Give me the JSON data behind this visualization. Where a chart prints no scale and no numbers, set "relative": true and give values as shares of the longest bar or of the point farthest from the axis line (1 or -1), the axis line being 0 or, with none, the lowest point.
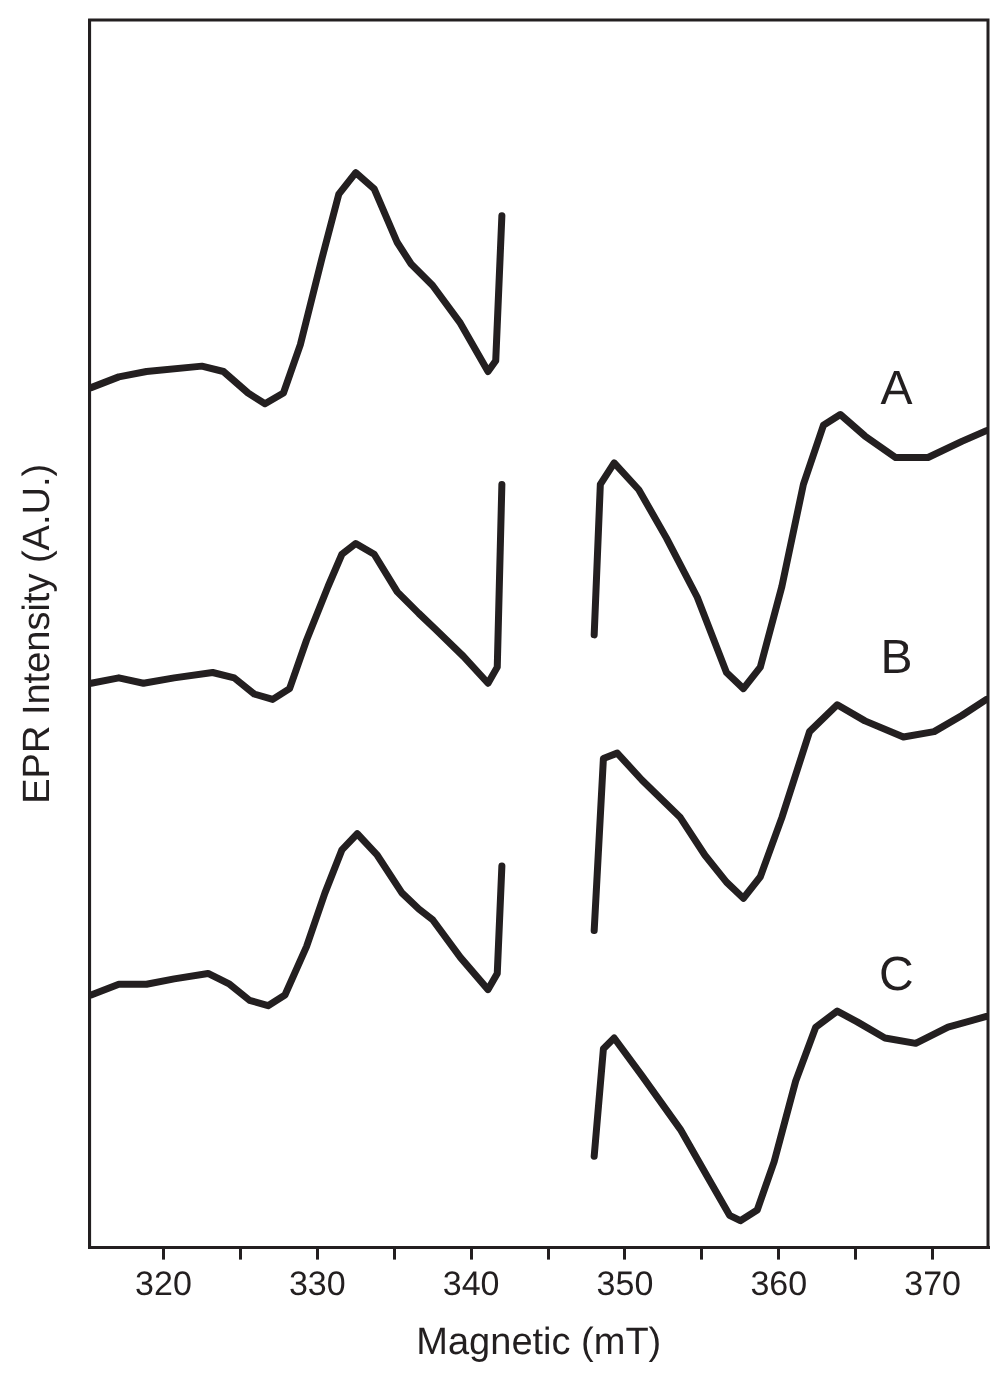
{
  "chart_data": {
    "type": "line",
    "xlabel": "Magnetic (mT)",
    "ylabel": "EPR Intensity (A.U.)",
    "relative": true,
    "xlim": [
      315.2,
      373.6
    ],
    "xticks": [
      320,
      {
        "value": 325,
        "label": null
      },
      330,
      {
        "value": 335,
        "label": null
      },
      340,
      {
        "value": 345,
        "label": null
      },
      350,
      {
        "value": 355,
        "label": null
      },
      360,
      {
        "value": 365,
        "label": null
      },
      370
    ],
    "grid": false,
    "legend": false,
    "marker": "none",
    "line_style": "solid",
    "series": [
      {
        "name": "A",
        "color": "#231f20",
        "x": [
          315.3,
          317.1,
          318.9,
          322.5,
          323.9,
          325.5,
          326.6,
          327.8,
          328.9,
          330.3,
          331.4,
          332.5,
          333.7,
          335.2,
          336.1,
          337.5,
          339.3,
          341.1,
          341.6,
          342.0,
          345,
          348.0,
          348.4,
          349.3,
          350.9,
          352.7,
          354.7,
          356.6,
          357.7,
          358.8,
          360.2,
          361.6,
          362.9,
          364.0,
          365.6,
          367.6,
          369.7,
          371.9,
          373.5
        ],
        "values": [
          0.8,
          0.81,
          0.815,
          0.82,
          0.815,
          0.795,
          0.785,
          0.795,
          0.84,
          0.92,
          0.98,
          1.0,
          0.985,
          0.935,
          0.915,
          0.895,
          0.86,
          0.815,
          0.825,
          0.96,
          null,
          0.57,
          0.71,
          0.73,
          0.705,
          0.66,
          0.605,
          0.535,
          0.52,
          0.54,
          0.615,
          0.71,
          0.765,
          0.775,
          0.755,
          0.735,
          0.735,
          0.75,
          0.76
        ]
      },
      {
        "name": "B",
        "color": "#231f20",
        "x": [
          315.3,
          317.1,
          318.7,
          320.7,
          323.2,
          324.6,
          325.9,
          327.1,
          328.2,
          329.3,
          330.7,
          331.6,
          332.5,
          333.7,
          335.2,
          336.6,
          337.7,
          339.5,
          341.1,
          341.7,
          342.0,
          345,
          348.0,
          348.6,
          349.5,
          351.1,
          353.6,
          355.2,
          356.6,
          357.7,
          358.8,
          360.2,
          362.0,
          363.8,
          365.6,
          368.1,
          370.1,
          371.9,
          373.5
        ],
        "values": [
          0.525,
          0.53,
          0.525,
          0.53,
          0.535,
          0.53,
          0.515,
          0.51,
          0.52,
          0.565,
          0.615,
          0.645,
          0.655,
          0.645,
          0.61,
          0.59,
          0.575,
          0.55,
          0.525,
          0.54,
          0.71,
          null,
          0.295,
          0.455,
          0.46,
          0.435,
          0.4,
          0.365,
          0.34,
          0.325,
          0.345,
          0.4,
          0.48,
          0.505,
          0.49,
          0.475,
          0.48,
          0.495,
          0.51
        ]
      },
      {
        "name": "C",
        "color": "#231f20",
        "x": [
          315.3,
          317.1,
          318.9,
          320.7,
          322.9,
          324.3,
          325.6,
          326.8,
          327.9,
          329.3,
          330.5,
          331.6,
          332.6,
          333.9,
          335.5,
          336.6,
          337.5,
          339.3,
          341.1,
          341.7,
          342.0,
          345,
          348.0,
          348.6,
          349.3,
          351.1,
          353.6,
          355.4,
          356.8,
          357.5,
          358.6,
          359.7,
          361.1,
          362.4,
          363.8,
          365.1,
          366.9,
          368.9,
          371.0,
          373.5
        ],
        "values": [
          0.235,
          0.245,
          0.245,
          0.25,
          0.255,
          0.245,
          0.23,
          0.225,
          0.235,
          0.28,
          0.33,
          0.37,
          0.385,
          0.365,
          0.33,
          0.315,
          0.305,
          0.27,
          0.24,
          0.255,
          0.355,
          null,
          0.085,
          0.185,
          0.195,
          0.16,
          0.11,
          0.065,
          0.03,
          0.025,
          0.035,
          0.08,
          0.155,
          0.205,
          0.22,
          0.21,
          0.195,
          0.19,
          0.205,
          0.215
        ]
      }
    ]
  }
}
